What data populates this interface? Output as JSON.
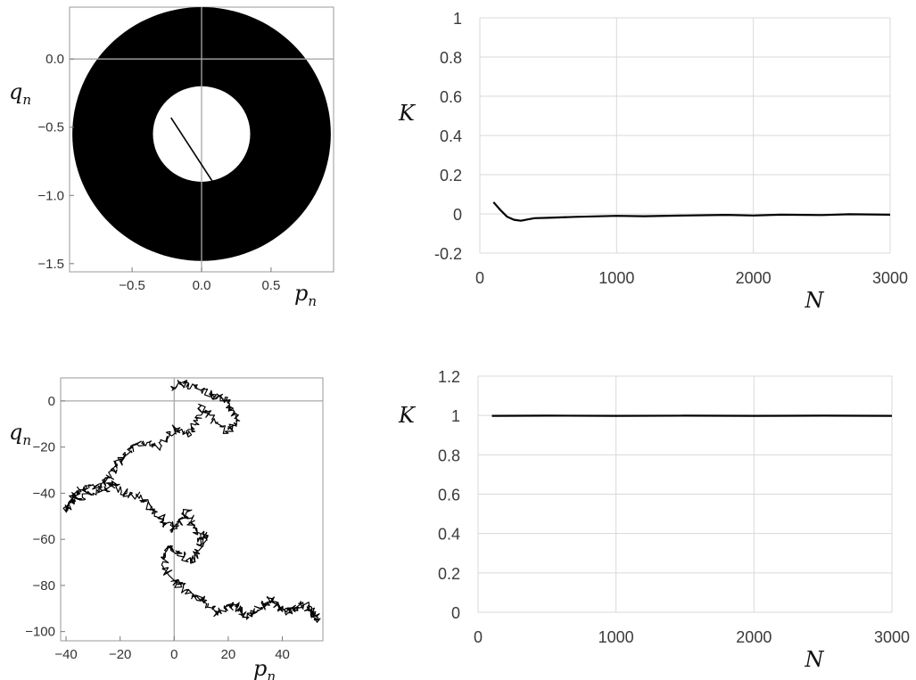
{
  "chart_data": [
    {
      "type": "scatter",
      "xlabel": "p",
      "xlabel_sub": "n",
      "ylabel": "q",
      "ylabel_sub": "n",
      "xticks": [
        "−0.5",
        "0.0",
        "0.5"
      ],
      "yticks": [
        "0.0",
        "−0.5",
        "−1.0",
        "−1.5"
      ],
      "xlim": [
        -0.95,
        0.95
      ],
      "ylim": [
        -1.56,
        0.38
      ],
      "annulus": {
        "center": [
          0.0,
          -0.55
        ],
        "outer_radius": 0.93,
        "inner_radius": 0.35
      },
      "segment": [
        [
          -0.22,
          -0.43
        ],
        [
          0.08,
          -0.9
        ]
      ]
    },
    {
      "type": "line",
      "xlabel": "N",
      "ylabel": "K",
      "xticks": [
        "0",
        "1000",
        "2000",
        "3000"
      ],
      "yticks": [
        "1",
        "0.8",
        "0.6",
        "0.4",
        "0.2",
        "0",
        "-0.2"
      ],
      "xlim": [
        0,
        3000
      ],
      "ylim": [
        -0.2,
        1
      ],
      "grid": true,
      "series": [
        {
          "x": [
            100,
            150,
            200,
            250,
            300,
            350,
            400,
            500,
            700,
            1000,
            1200,
            1500,
            1800,
            2000,
            2200,
            2500,
            2700,
            3000
          ],
          "values": [
            0.06,
            0.02,
            -0.015,
            -0.03,
            -0.035,
            -0.028,
            -0.022,
            -0.02,
            -0.015,
            -0.01,
            -0.012,
            -0.008,
            -0.005,
            -0.008,
            -0.004,
            -0.006,
            -0.002,
            -0.004
          ]
        }
      ]
    },
    {
      "type": "line",
      "xlabel": "p",
      "xlabel_sub": "n",
      "ylabel": "q",
      "ylabel_sub": "n",
      "xticks": [
        "−40",
        "−20",
        "0",
        "20",
        "40"
      ],
      "yticks": [
        "0",
        "−20",
        "−40",
        "−60",
        "−80",
        "−100"
      ],
      "xlim": [
        -42,
        55
      ],
      "ylim": [
        -104,
        10
      ],
      "series": [
        {
          "x": [
            -0.5,
            3,
            8,
            13,
            17,
            20,
            22,
            23,
            20,
            14,
            10,
            8,
            5,
            0,
            -5,
            -10,
            -16,
            -18,
            -21,
            -24,
            -28,
            -32,
            -36,
            -38,
            -40,
            -36,
            -30,
            -25,
            -22,
            -18,
            -12,
            -8,
            -4,
            -1,
            2,
            5,
            7,
            10,
            12,
            9,
            6,
            2,
            -2,
            -4,
            0,
            4,
            8,
            12,
            16,
            19,
            22,
            24,
            27,
            30,
            33,
            36,
            39,
            42,
            44,
            47,
            50,
            52,
            53
          ],
          "values": [
            5,
            8,
            6,
            3,
            2,
            -1,
            -4,
            -8,
            -14,
            -8,
            -2,
            -10,
            -15,
            -12,
            -20,
            -18,
            -20,
            -24,
            -28,
            -33,
            -37,
            -38,
            -39,
            -43,
            -48,
            -42,
            -40,
            -38,
            -36,
            -40,
            -42,
            -47,
            -52,
            -56,
            -52,
            -48,
            -55,
            -62,
            -57,
            -65,
            -70,
            -66,
            -63,
            -72,
            -78,
            -82,
            -85,
            -88,
            -92,
            -90,
            -88,
            -90,
            -94,
            -92,
            -88,
            -86,
            -90,
            -92,
            -90,
            -88,
            -90,
            -93,
            -95
          ]
        }
      ]
    },
    {
      "type": "line",
      "xlabel": "N",
      "ylabel": "K",
      "xticks": [
        "0",
        "1000",
        "2000",
        "3000"
      ],
      "yticks": [
        "1.2",
        "1",
        "0.8",
        "0.6",
        "0.4",
        "0.2",
        "0"
      ],
      "xlim": [
        0,
        3000
      ],
      "ylim": [
        0,
        1.2
      ],
      "grid": true,
      "series": [
        {
          "x": [
            100,
            500,
            1000,
            1500,
            2000,
            2500,
            3000
          ],
          "values": [
            0.998,
            0.999,
            0.998,
            0.999,
            0.998,
            0.999,
            0.998
          ]
        }
      ]
    }
  ]
}
